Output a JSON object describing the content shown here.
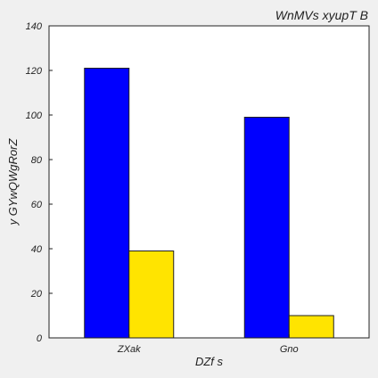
{
  "chart_data": {
    "type": "bar",
    "title": "WnMVs xyupT B",
    "xlabel": "DZf s",
    "ylabel": "y GYwQWgRorZ",
    "categories": [
      "ZXak",
      "Gno"
    ],
    "series": [
      {
        "values": [
          121,
          99
        ],
        "color": "#0000ff"
      },
      {
        "values": [
          39,
          10
        ],
        "color": "#ffe400"
      }
    ],
    "ylim": [
      0,
      140
    ],
    "yticks": [
      0,
      20,
      40,
      60,
      80,
      100,
      120,
      140
    ],
    "grid": false,
    "legend": "none",
    "background": "#ffffff",
    "page_background": "#f0f0f0"
  }
}
